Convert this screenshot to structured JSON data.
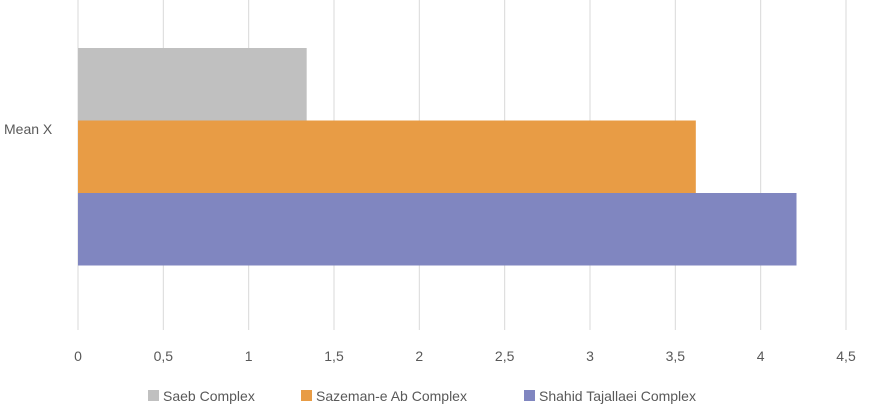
{
  "chart_data": {
    "type": "bar",
    "orientation": "horizontal",
    "categories": [
      "Mean X"
    ],
    "series": [
      {
        "name": "Saeb Complex",
        "values": [
          1.34
        ],
        "color": "#c0c0c0"
      },
      {
        "name": "Sazeman-e Ab Complex",
        "values": [
          3.62
        ],
        "color": "#e89c45"
      },
      {
        "name": "Shahid Tajallaei Complex",
        "values": [
          4.21
        ],
        "color": "#8086c0"
      }
    ],
    "x_ticks": [
      "0",
      "0,5",
      "1",
      "1,5",
      "2",
      "2,5",
      "3",
      "3,5",
      "4",
      "4,5"
    ],
    "xlim": [
      0,
      4.5
    ],
    "title": "",
    "xlabel": "",
    "ylabel": "",
    "grid": "vertical",
    "legend_position": "bottom",
    "colors": {
      "gridline": "#d9d9d9",
      "text": "#595959"
    }
  }
}
